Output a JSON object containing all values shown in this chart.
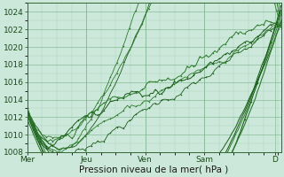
{
  "bg_color": "#cce8da",
  "plot_bg_color": "#cce8da",
  "grid_color_major": "#88bb99",
  "grid_color_minor": "#aad4bb",
  "line_color": "#1a5c1a",
  "line_color2": "#2d7a2d",
  "xlabel": "Pression niveau de la mer( hPa )",
  "ylim": [
    1008,
    1025
  ],
  "yticks": [
    1008,
    1010,
    1012,
    1014,
    1016,
    1018,
    1020,
    1022,
    1024
  ],
  "xtick_labels": [
    "Mer",
    "Jeu",
    "Ven",
    "Sam",
    "D"
  ],
  "xtick_pos": [
    0,
    1,
    2,
    3,
    4.2
  ],
  "xlim": [
    0,
    4.3
  ],
  "tick_fontsize": 6.5,
  "label_fontsize": 7.5
}
